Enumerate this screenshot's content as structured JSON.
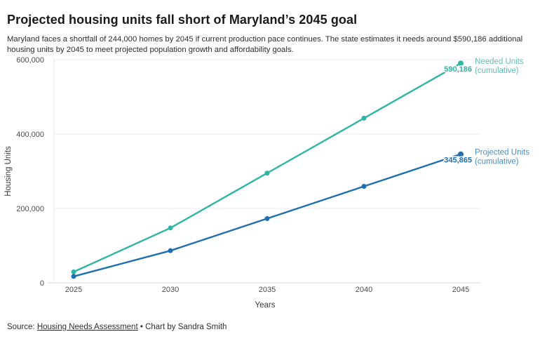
{
  "header": {
    "title": "Projected housing units fall short of Maryland’s 2045 goal",
    "subtitle": "Maryland faces a shortfall of 244,000 homes by 2045 if current production pace continues. The state estimates it needs around $590,186 additional housing units by 2045 to meet projected population growth and affordability goals."
  },
  "chart_data": {
    "type": "line",
    "title": "Projected housing units fall short of Maryland’s 2045 goal",
    "xlabel": "Years",
    "ylabel": "Housing Units",
    "x": [
      2025,
      2030,
      2035,
      2040,
      2045
    ],
    "x_ticks": [
      "2025",
      "2030",
      "2035",
      "2040",
      "2045"
    ],
    "y_ticks": [
      {
        "value": 0,
        "label": "0"
      },
      {
        "value": 200000,
        "label": "200,000"
      },
      {
        "value": 400000,
        "label": "400,000"
      },
      {
        "value": 600000,
        "label": "600,000"
      }
    ],
    "ylim": [
      0,
      600000
    ],
    "grid": true,
    "legend_position": "end-of-line-labels-right",
    "series": [
      {
        "name": "Needed Units (cumulative)",
        "label_lines": [
          "Needed Units",
          "(cumulative)"
        ],
        "values": [
          29509,
          147547,
          295093,
          442640,
          590186
        ],
        "end_label": "590,186",
        "color": "#2eb5a4",
        "label_color": "#5fbfb2"
      },
      {
        "name": "Projected Units (cumulative)",
        "label_lines": [
          "Projected Units",
          "(cumulative)"
        ],
        "values": [
          17293,
          86466,
          172933,
          259399,
          345865
        ],
        "end_label": "345,865",
        "color": "#1f6fb0",
        "label_color": "#4e8cbf"
      }
    ]
  },
  "footer": {
    "source_prefix": "Source: ",
    "source_link": "Housing Needs Assessment",
    "separator": " • ",
    "credit": "Chart by Sandra Smith"
  }
}
